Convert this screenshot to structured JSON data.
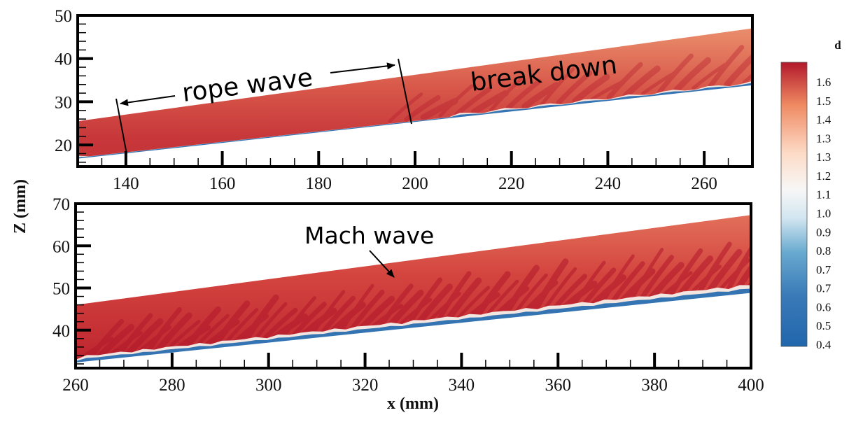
{
  "chart_data": {
    "type": "heatmap",
    "description": "Two contour panels of density d along an inclined shear layer",
    "shared_ylabel": "Z (mm)",
    "xlabel": "x (mm)",
    "colorbar": {
      "title": "d",
      "labels": [
        "1.6",
        "1.5",
        "1.4",
        "1.3",
        "1.3",
        "1.2",
        "1.1",
        "1.0",
        "0.9",
        "0.8",
        "0.7",
        "0.7",
        "0.6",
        "0.5",
        "0.4"
      ],
      "range": [
        0.4,
        1.65
      ],
      "colors": {
        "high": "#b2182b",
        "mid_high": "#ef8a62",
        "mid_light": "#fddbc7",
        "mid": "#f7f7f7",
        "low_light": "#d1e5f0",
        "mid_low": "#67a9cf",
        "low": "#2166ac"
      }
    },
    "panels": [
      {
        "name": "top",
        "xlim": [
          130,
          270
        ],
        "ylim": [
          15,
          50
        ],
        "xticks": [
          140,
          160,
          180,
          200,
          220,
          240,
          260
        ],
        "yticks": [
          20,
          30,
          40,
          50
        ],
        "band": {
          "x": [
            130,
            270
          ],
          "upper_z": [
            25.5,
            47
          ],
          "lower_z": [
            17,
            34
          ]
        },
        "annotations": [
          {
            "text": "rope wave",
            "kind": "double-arrow",
            "from_x": 140,
            "to_x": 198
          },
          {
            "text": "break down"
          }
        ],
        "markers_x": [
          140,
          199
        ]
      },
      {
        "name": "bottom",
        "xlim": [
          260,
          400
        ],
        "ylim": [
          31,
          70
        ],
        "xticks": [
          260,
          280,
          300,
          320,
          340,
          360,
          380,
          400
        ],
        "yticks": [
          40,
          50,
          60,
          70
        ],
        "band": {
          "x": [
            260,
            400
          ],
          "upper_z": [
            46,
            67.3
          ],
          "lower_z": [
            32.5,
            49
          ]
        },
        "annotations": [
          {
            "text": "Mach wave",
            "kind": "arrow"
          }
        ]
      }
    ]
  }
}
